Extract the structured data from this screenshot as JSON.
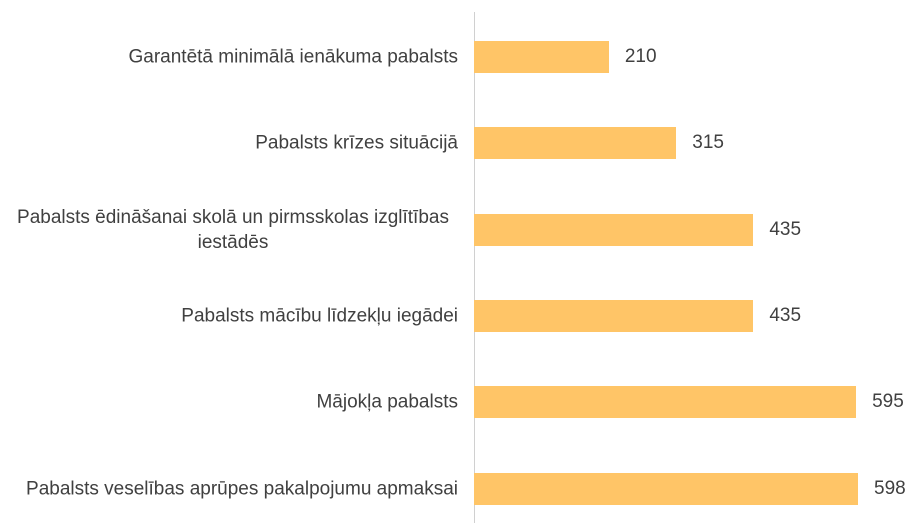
{
  "chart_data": {
    "type": "bar",
    "orientation": "horizontal",
    "categories": [
      "Garantētā minimālā ienākuma pabalsts",
      "Pabalsts krīzes situācijā",
      "Pabalsts ēdināšanai skolā un pirmsskolas izglītības iestādēs",
      "Pabalsts mācību līdzekļu iegādei",
      "Mājokļa pabalsts",
      "Pabalsts veselības aprūpes pakalpojumu apmaksai"
    ],
    "values": [
      210,
      315,
      435,
      435,
      595,
      598
    ],
    "color": "#ffc567"
  }
}
